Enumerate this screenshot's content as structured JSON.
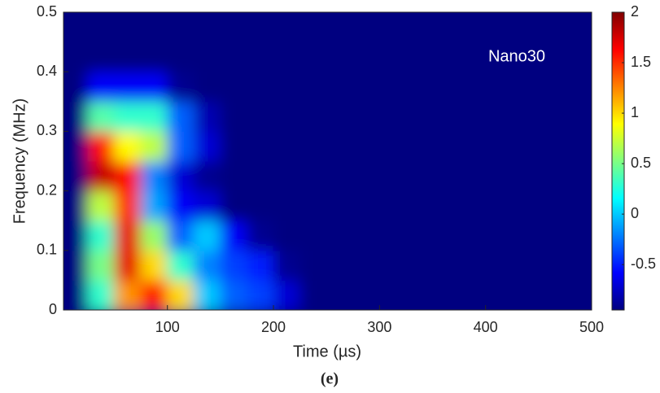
{
  "chart_data": {
    "type": "heatmap",
    "annotation": "Nano30",
    "caption": "(e)",
    "xlabel": "Time (µs)",
    "ylabel": "Frequency (MHz)",
    "xlim": [
      2,
      500
    ],
    "xticks": [
      100,
      200,
      300,
      400,
      500
    ],
    "ylim": [
      0,
      0.5
    ],
    "yticks": [
      0,
      0.1,
      0.2,
      0.3,
      0.4,
      0.5
    ],
    "clim": [
      -0.95,
      2
    ],
    "cticks": [
      -0.5,
      0,
      0.5,
      1,
      1.5,
      2
    ],
    "colormap": "jet",
    "x": [
      12.5,
      37.5,
      62.5,
      87.5,
      112.5,
      137.5,
      162.5,
      187.5,
      212.5,
      237.5,
      262.5,
      287.5,
      312.5,
      337.5,
      362.5,
      387.5,
      412.5,
      437.5,
      462.5,
      487.5
    ],
    "y": [
      0.025,
      0.075,
      0.125,
      0.175,
      0.225,
      0.275,
      0.325,
      0.375,
      0.425,
      0.475
    ],
    "z": [
      [
        -0.95,
        0.3,
        1.2,
        1.6,
        1.0,
        0.0,
        -0.3,
        -0.4,
        -0.7,
        -0.95,
        -0.95,
        -0.95,
        -0.95,
        -0.95,
        -0.95,
        -0.95,
        -0.95,
        -0.95,
        -0.95,
        -0.95
      ],
      [
        -0.95,
        0.5,
        1.7,
        1.0,
        0.3,
        -0.2,
        -0.4,
        -0.5,
        -0.9,
        -0.95,
        -0.95,
        -0.95,
        -0.95,
        -0.95,
        -0.95,
        -0.95,
        -0.95,
        -0.95,
        -0.95,
        -0.95
      ],
      [
        -0.95,
        0.3,
        1.7,
        0.6,
        -0.3,
        0.0,
        -0.6,
        -0.9,
        -0.95,
        -0.95,
        -0.95,
        -0.95,
        -0.95,
        -0.95,
        -0.95,
        -0.95,
        -0.95,
        -0.95,
        -0.95,
        -0.95
      ],
      [
        -0.95,
        0.7,
        1.5,
        -0.1,
        -0.6,
        -0.7,
        -0.95,
        -0.95,
        -0.95,
        -0.95,
        -0.95,
        -0.95,
        -0.95,
        -0.95,
        -0.95,
        -0.95,
        -0.95,
        -0.95,
        -0.95,
        -0.95
      ],
      [
        -0.95,
        1.8,
        1.6,
        -0.2,
        -0.7,
        -0.9,
        -0.95,
        -0.95,
        -0.95,
        -0.95,
        -0.95,
        -0.95,
        -0.95,
        -0.95,
        -0.95,
        -0.95,
        -0.95,
        -0.95,
        -0.95,
        -0.95
      ],
      [
        -0.95,
        1.6,
        0.9,
        0.7,
        -0.3,
        -0.7,
        -0.95,
        -0.95,
        -0.95,
        -0.95,
        -0.95,
        -0.95,
        -0.95,
        -0.95,
        -0.95,
        -0.95,
        -0.95,
        -0.95,
        -0.95,
        -0.95
      ],
      [
        -0.95,
        0.4,
        0.3,
        0.3,
        -0.3,
        -0.8,
        -0.95,
        -0.95,
        -0.95,
        -0.95,
        -0.95,
        -0.95,
        -0.95,
        -0.95,
        -0.95,
        -0.95,
        -0.95,
        -0.95,
        -0.95,
        -0.95
      ],
      [
        -0.95,
        -0.6,
        -0.6,
        -0.6,
        -0.9,
        -0.95,
        -0.95,
        -0.95,
        -0.95,
        -0.95,
        -0.95,
        -0.95,
        -0.95,
        -0.95,
        -0.95,
        -0.95,
        -0.95,
        -0.95,
        -0.95,
        -0.95
      ],
      [
        -0.95,
        -0.95,
        -0.95,
        -0.95,
        -0.95,
        -0.95,
        -0.95,
        -0.95,
        -0.95,
        -0.95,
        -0.95,
        -0.95,
        -0.95,
        -0.95,
        -0.95,
        -0.95,
        -0.95,
        -0.95,
        -0.95,
        -0.95
      ],
      [
        -0.95,
        -0.95,
        -0.95,
        -0.95,
        -0.95,
        -0.95,
        -0.95,
        -0.95,
        -0.95,
        -0.95,
        -0.95,
        -0.95,
        -0.95,
        -0.95,
        -0.95,
        -0.95,
        -0.95,
        -0.95,
        -0.95,
        -0.95
      ]
    ]
  }
}
